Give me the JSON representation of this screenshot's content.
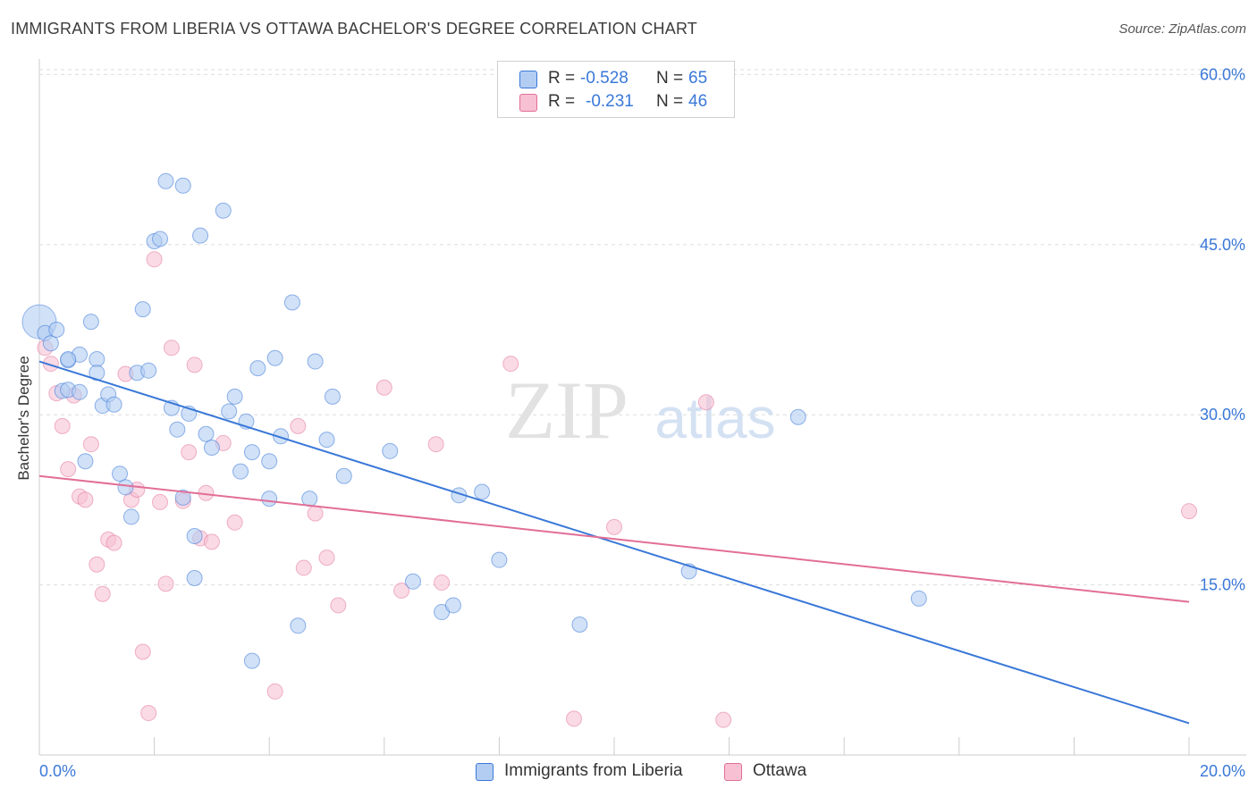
{
  "title": "IMMIGRANTS FROM LIBERIA VS OTTAWA BACHELOR'S DEGREE CORRELATION CHART",
  "source": "Source: ZipAtlas.com",
  "watermark": {
    "zip": "ZIP",
    "atlas": "atlas"
  },
  "legend_top": {
    "rows": [
      {
        "r_label": "R =",
        "r_value": "-0.528",
        "n_label": "N =",
        "n_value": "65"
      },
      {
        "r_label": "R =",
        "r_value": "-0.231",
        "n_label": "N =",
        "n_value": "46"
      }
    ]
  },
  "legend_bottom": [
    "Immigrants from Liberia",
    "Ottawa"
  ],
  "chart_data": {
    "type": "scatter",
    "title": "IMMIGRANTS FROM LIBERIA VS OTTAWA BACHELOR'S DEGREE CORRELATION CHART",
    "xlabel": "",
    "ylabel": "Bachelor's Degree",
    "xlim": [
      0,
      20
    ],
    "ylim": [
      0,
      62
    ],
    "x_tick_labels": [
      "0.0%",
      "20.0%"
    ],
    "y_ticks": [
      15,
      30,
      45,
      60
    ],
    "y_tick_labels": [
      "15.0%",
      "30.0%",
      "45.0%",
      "60.0%"
    ],
    "grid": true,
    "legend_position": "top-center",
    "colors": {
      "liberia": "#3a78d8",
      "liberia_fill": "#b3cdf2",
      "ottawa": "#e26e97",
      "ottawa_fill": "#f7c1d3"
    },
    "series": [
      {
        "name": "Immigrants from Liberia",
        "R": -0.528,
        "N": 65,
        "trend": {
          "x": [
            0,
            20
          ],
          "y": [
            34.7,
            2.8
          ]
        },
        "points": [
          [
            0.1,
            37.2
          ],
          [
            0.2,
            36.3
          ],
          [
            0.3,
            37.5
          ],
          [
            0.5,
            34.8
          ],
          [
            0.7,
            35.3
          ],
          [
            0.9,
            38.2
          ],
          [
            1.0,
            34.9
          ],
          [
            0.4,
            32.1
          ],
          [
            0.5,
            32.2
          ],
          [
            0.7,
            32.0
          ],
          [
            0.8,
            25.9
          ],
          [
            1.0,
            33.7
          ],
          [
            1.1,
            30.8
          ],
          [
            1.2,
            31.8
          ],
          [
            1.3,
            30.9
          ],
          [
            1.4,
            24.8
          ],
          [
            1.5,
            23.6
          ],
          [
            1.6,
            21.0
          ],
          [
            1.7,
            33.7
          ],
          [
            1.8,
            39.3
          ],
          [
            1.9,
            33.9
          ],
          [
            2.0,
            45.3
          ],
          [
            2.1,
            45.5
          ],
          [
            2.2,
            50.6
          ],
          [
            2.3,
            30.6
          ],
          [
            2.4,
            28.7
          ],
          [
            2.5,
            50.2
          ],
          [
            2.6,
            30.1
          ],
          [
            2.7,
            15.6
          ],
          [
            2.8,
            45.8
          ],
          [
            2.9,
            28.3
          ],
          [
            3.0,
            27.1
          ],
          [
            2.7,
            19.3
          ],
          [
            3.2,
            48.0
          ],
          [
            3.3,
            30.3
          ],
          [
            3.4,
            31.6
          ],
          [
            3.5,
            25.0
          ],
          [
            3.6,
            29.4
          ],
          [
            3.7,
            26.7
          ],
          [
            3.8,
            34.1
          ],
          [
            4.0,
            25.9
          ],
          [
            4.1,
            35.0
          ],
          [
            4.2,
            28.1
          ],
          [
            4.4,
            39.9
          ],
          [
            4.0,
            22.6
          ],
          [
            4.5,
            11.4
          ],
          [
            4.7,
            22.6
          ],
          [
            4.8,
            34.7
          ],
          [
            5.0,
            27.8
          ],
          [
            5.1,
            31.6
          ],
          [
            5.3,
            24.6
          ],
          [
            3.7,
            8.3
          ],
          [
            6.1,
            26.8
          ],
          [
            6.5,
            15.3
          ],
          [
            7.0,
            12.6
          ],
          [
            7.2,
            13.2
          ],
          [
            7.3,
            22.9
          ],
          [
            7.7,
            23.2
          ],
          [
            8.0,
            17.2
          ],
          [
            9.4,
            11.5
          ],
          [
            11.3,
            16.2
          ],
          [
            13.2,
            29.8
          ],
          [
            15.3,
            13.8
          ],
          [
            2.5,
            22.7
          ],
          [
            0.5,
            34.9
          ]
        ]
      },
      {
        "name": "Ottawa",
        "R": -0.231,
        "N": 46,
        "trend": {
          "x": [
            0,
            20
          ],
          "y": [
            24.6,
            13.5
          ]
        },
        "points": [
          [
            0.1,
            35.9
          ],
          [
            0.2,
            34.5
          ],
          [
            0.3,
            31.9
          ],
          [
            0.4,
            29.0
          ],
          [
            0.5,
            25.2
          ],
          [
            0.6,
            31.7
          ],
          [
            0.7,
            22.8
          ],
          [
            0.8,
            22.5
          ],
          [
            0.9,
            27.4
          ],
          [
            1.0,
            16.8
          ],
          [
            1.1,
            14.2
          ],
          [
            1.2,
            19.0
          ],
          [
            1.3,
            18.7
          ],
          [
            1.5,
            33.6
          ],
          [
            1.6,
            22.5
          ],
          [
            1.7,
            23.4
          ],
          [
            1.8,
            9.1
          ],
          [
            1.9,
            3.7
          ],
          [
            2.0,
            43.7
          ],
          [
            2.1,
            22.3
          ],
          [
            2.2,
            15.1
          ],
          [
            2.3,
            35.9
          ],
          [
            2.5,
            22.4
          ],
          [
            2.6,
            26.7
          ],
          [
            2.7,
            34.4
          ],
          [
            2.8,
            19.1
          ],
          [
            2.9,
            23.1
          ],
          [
            3.0,
            18.8
          ],
          [
            3.2,
            27.5
          ],
          [
            3.4,
            20.5
          ],
          [
            4.1,
            5.6
          ],
          [
            4.5,
            29.0
          ],
          [
            4.6,
            16.5
          ],
          [
            4.8,
            21.3
          ],
          [
            5.0,
            17.4
          ],
          [
            5.2,
            13.2
          ],
          [
            6.0,
            32.4
          ],
          [
            6.3,
            14.5
          ],
          [
            6.9,
            27.4
          ],
          [
            7.0,
            15.2
          ],
          [
            8.2,
            34.5
          ],
          [
            9.3,
            3.2
          ],
          [
            10.0,
            20.1
          ],
          [
            11.6,
            31.1
          ],
          [
            11.9,
            3.1
          ],
          [
            20.0,
            21.5
          ]
        ]
      }
    ]
  }
}
